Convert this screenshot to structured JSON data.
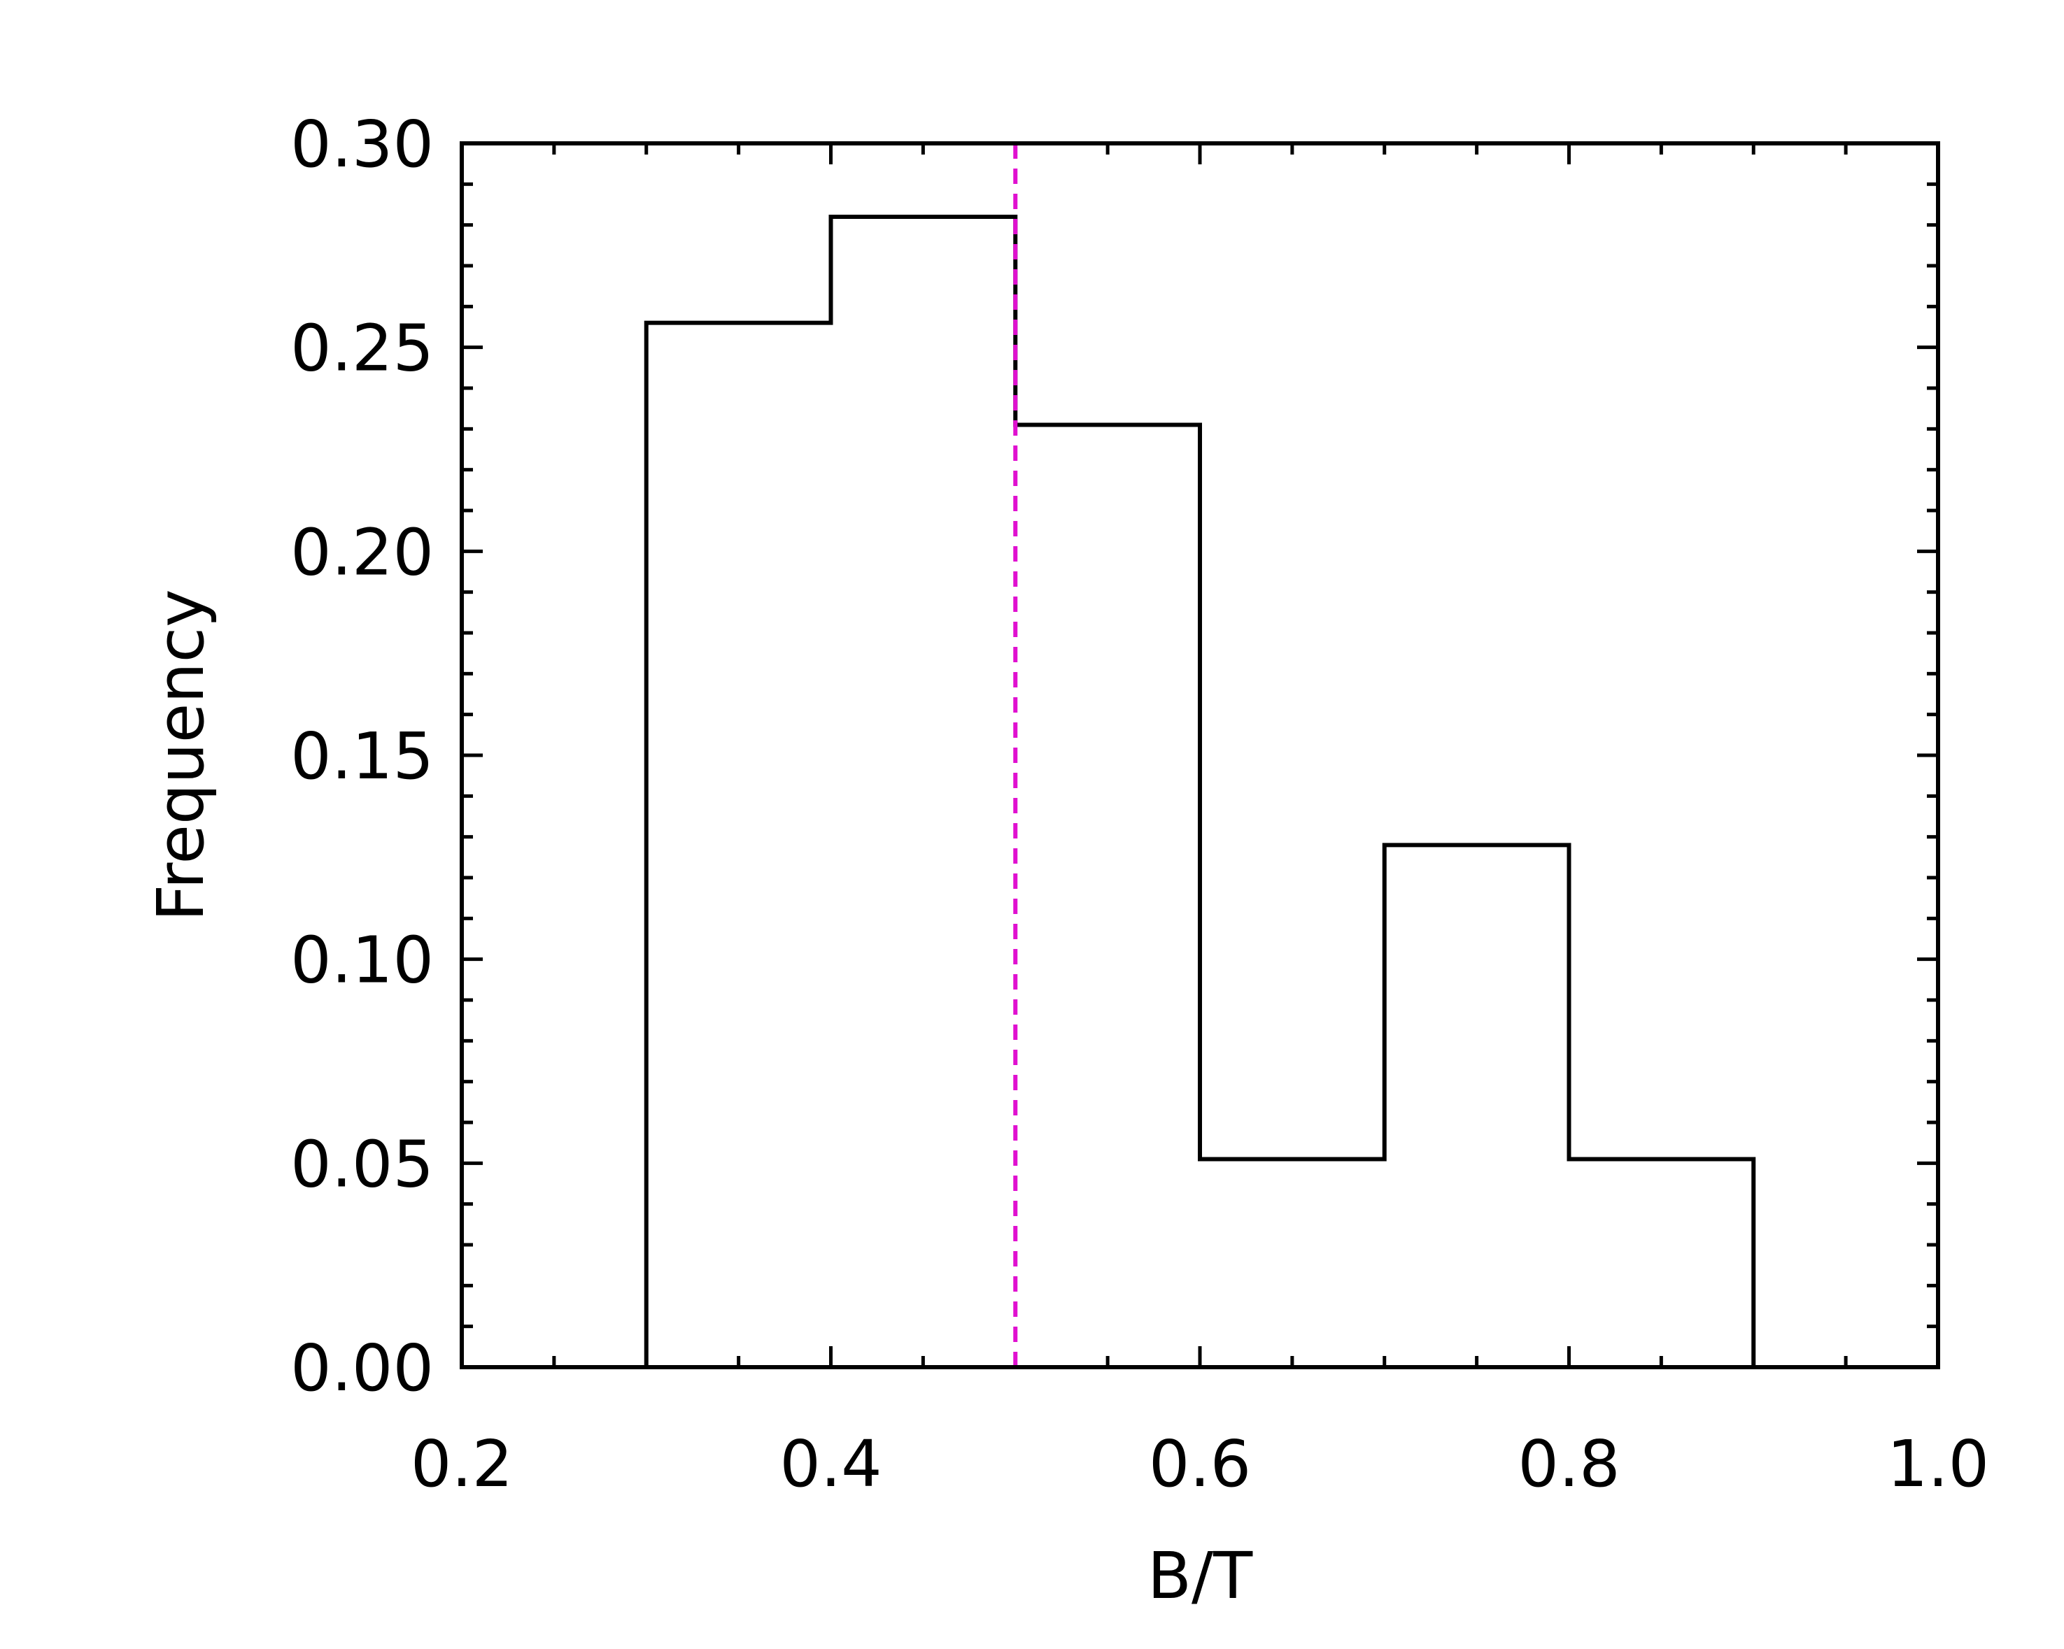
{
  "chart_data": {
    "type": "histogram",
    "title": "",
    "xlabel": "B/T",
    "ylabel": "Frequency",
    "xlim": [
      0.2,
      1.0
    ],
    "ylim": [
      0.0,
      0.3
    ],
    "x_ticks": [
      "0.2",
      "0.4",
      "0.6",
      "0.8",
      "1.0"
    ],
    "x_tick_values": [
      0.2,
      0.4,
      0.6,
      0.8,
      1.0
    ],
    "y_ticks": [
      "0.00",
      "0.05",
      "0.10",
      "0.15",
      "0.20",
      "0.25",
      "0.30"
    ],
    "y_tick_values": [
      0.0,
      0.05,
      0.1,
      0.15,
      0.2,
      0.25,
      0.3
    ],
    "bin_edges": [
      0.3,
      0.4,
      0.5,
      0.6,
      0.7,
      0.8,
      0.9
    ],
    "values": [
      0.256,
      0.282,
      0.231,
      0.051,
      0.128,
      0.051
    ],
    "reference_line": {
      "x": 0.5,
      "style": "dashed",
      "color": "#e010d0"
    },
    "grid": false,
    "line_color": "#000000"
  }
}
